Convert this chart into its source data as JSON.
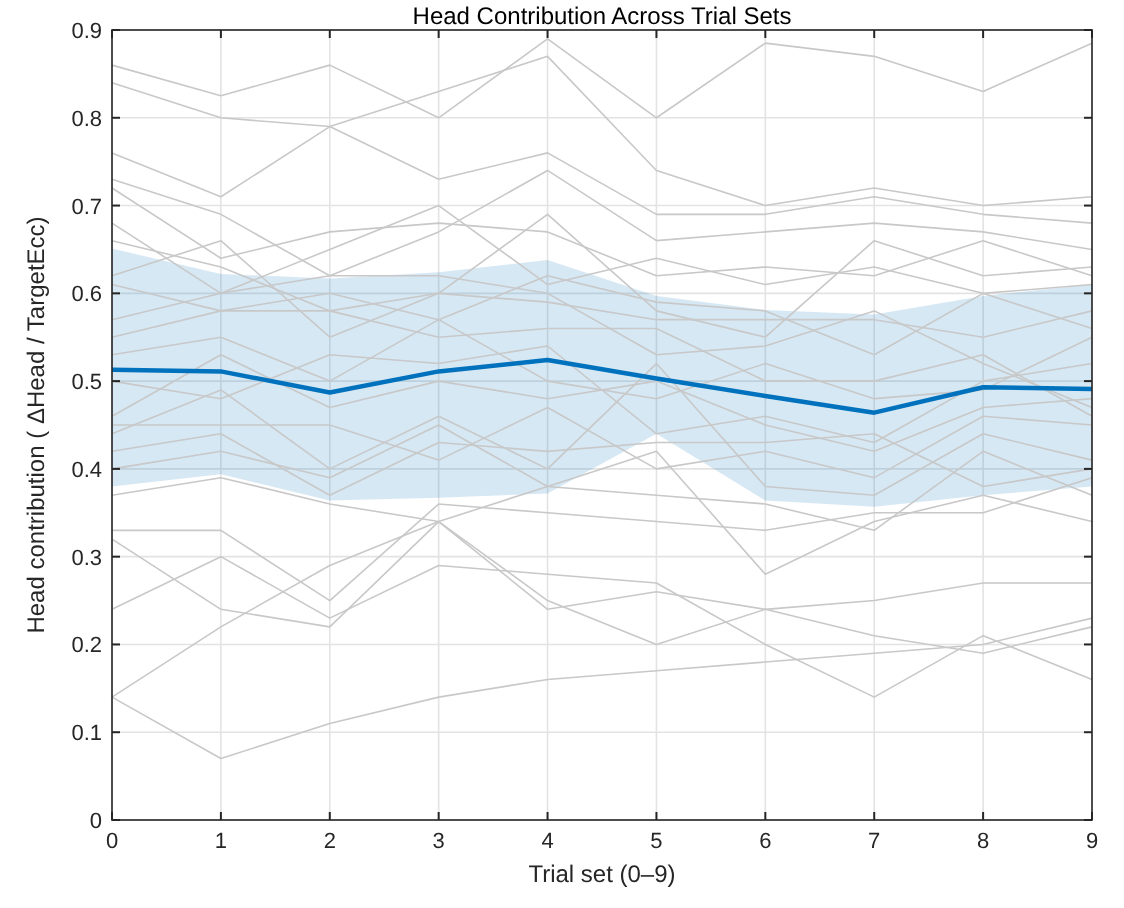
{
  "chart_data": {
    "type": "line",
    "title": "Head Contribution Across Trial Sets",
    "xlabel": "Trial set (0–9)",
    "ylabel": "Head contribution ( ΔHead / TargetEcc)",
    "x": [
      0,
      1,
      2,
      3,
      4,
      5,
      6,
      7,
      8,
      9
    ],
    "xlim": [
      0,
      9
    ],
    "xticks": [
      0,
      1,
      2,
      3,
      4,
      5,
      6,
      7,
      8,
      9
    ],
    "ylim": [
      0,
      0.9
    ],
    "yticks": [
      0,
      0.1,
      0.2,
      0.3,
      0.4,
      0.5,
      0.6,
      0.7,
      0.8,
      0.9
    ],
    "grid": true,
    "marker": "none",
    "line_style": "solid",
    "series": [
      {
        "color": "#c8c8c8",
        "values": [
          0.86,
          0.825,
          0.86,
          0.8,
          0.89,
          0.8,
          0.885,
          0.87,
          0.83,
          0.885
        ]
      },
      {
        "color": "#c8c8c8",
        "values": [
          0.84,
          0.8,
          0.79,
          0.83,
          0.87,
          0.74,
          0.7,
          0.72,
          0.7,
          0.71
        ]
      },
      {
        "color": "#c8c8c8",
        "values": [
          0.76,
          0.71,
          0.79,
          0.73,
          0.76,
          0.69,
          0.69,
          0.71,
          0.69,
          0.68
        ]
      },
      {
        "color": "#c8c8c8",
        "values": [
          0.73,
          0.69,
          0.62,
          0.67,
          0.74,
          0.66,
          0.67,
          0.68,
          0.67,
          0.65
        ]
      },
      {
        "color": "#c8c8c8",
        "values": [
          0.72,
          0.64,
          0.67,
          0.68,
          0.67,
          0.62,
          0.63,
          0.62,
          0.66,
          0.62
        ]
      },
      {
        "color": "#c8c8c8",
        "values": [
          0.68,
          0.6,
          0.65,
          0.7,
          0.61,
          0.64,
          0.61,
          0.63,
          0.6,
          0.61
        ]
      },
      {
        "color": "#c8c8c8",
        "values": [
          0.66,
          0.63,
          0.58,
          0.6,
          0.69,
          0.58,
          0.55,
          0.66,
          0.62,
          0.63
        ]
      },
      {
        "color": "#c8c8c8",
        "values": [
          0.62,
          0.66,
          0.55,
          0.6,
          0.59,
          0.57,
          0.57,
          0.57,
          0.55,
          0.58
        ]
      },
      {
        "color": "#c8c8c8",
        "values": [
          0.61,
          0.58,
          0.6,
          0.57,
          0.62,
          0.59,
          0.58,
          0.53,
          0.6,
          0.56
        ]
      },
      {
        "color": "#c8c8c8",
        "values": [
          0.57,
          0.6,
          0.62,
          0.62,
          0.6,
          0.53,
          0.54,
          0.58,
          0.52,
          0.47
        ]
      },
      {
        "color": "#c8c8c8",
        "values": [
          0.55,
          0.58,
          0.58,
          0.55,
          0.56,
          0.56,
          0.5,
          0.5,
          0.53,
          0.46
        ]
      },
      {
        "color": "#c8c8c8",
        "values": [
          0.53,
          0.55,
          0.5,
          0.57,
          0.5,
          0.48,
          0.52,
          0.48,
          0.49,
          0.55
        ]
      },
      {
        "color": "#c8c8c8",
        "values": [
          0.5,
          0.48,
          0.53,
          0.52,
          0.54,
          0.44,
          0.46,
          0.43,
          0.5,
          0.52
        ]
      },
      {
        "color": "#c8c8c8",
        "values": [
          0.46,
          0.53,
          0.47,
          0.5,
          0.48,
          0.5,
          0.45,
          0.42,
          0.47,
          0.48
        ]
      },
      {
        "color": "#c8c8c8",
        "values": [
          0.45,
          0.45,
          0.45,
          0.41,
          0.47,
          0.4,
          0.42,
          0.39,
          0.46,
          0.45
        ]
      },
      {
        "color": "#c8c8c8",
        "values": [
          0.44,
          0.49,
          0.4,
          0.46,
          0.4,
          0.52,
          0.38,
          0.37,
          0.44,
          0.41
        ]
      },
      {
        "color": "#c8c8c8",
        "values": [
          0.42,
          0.44,
          0.37,
          0.43,
          0.42,
          0.43,
          0.43,
          0.44,
          0.38,
          0.4
        ]
      },
      {
        "color": "#c8c8c8",
        "values": [
          0.4,
          0.42,
          0.39,
          0.45,
          0.38,
          0.37,
          0.36,
          0.33,
          0.42,
          0.37
        ]
      },
      {
        "color": "#c8c8c8",
        "values": [
          0.37,
          0.39,
          0.36,
          0.34,
          0.38,
          0.42,
          0.28,
          0.34,
          0.37,
          0.34
        ]
      },
      {
        "color": "#c8c8c8",
        "values": [
          0.33,
          0.33,
          0.25,
          0.36,
          0.35,
          0.34,
          0.33,
          0.35,
          0.35,
          0.39
        ]
      },
      {
        "color": "#c8c8c8",
        "values": [
          0.32,
          0.24,
          0.22,
          0.34,
          0.24,
          0.26,
          0.24,
          0.21,
          0.19,
          0.22
        ]
      },
      {
        "color": "#c8c8c8",
        "values": [
          0.24,
          0.3,
          0.23,
          0.29,
          0.28,
          0.27,
          0.2,
          0.14,
          0.21,
          0.16
        ]
      },
      {
        "color": "#c8c8c8",
        "values": [
          0.14,
          0.22,
          0.29,
          0.34,
          0.25,
          0.2,
          0.24,
          0.25,
          0.27,
          0.27
        ]
      },
      {
        "color": "#c8c8c8",
        "values": [
          0.14,
          0.07,
          0.11,
          0.14,
          0.16,
          0.17,
          0.18,
          0.19,
          0.2,
          0.23
        ]
      },
      {
        "color": "#0072bd",
        "values": [
          0.513,
          0.511,
          0.487,
          0.511,
          0.524,
          0.503,
          0.483,
          0.464,
          0.493,
          0.491
        ],
        "lower": [
          0.38,
          0.394,
          0.364,
          0.367,
          0.372,
          0.44,
          0.364,
          0.357,
          0.37,
          0.38
        ],
        "upper": [
          0.651,
          0.622,
          0.617,
          0.624,
          0.638,
          0.597,
          0.581,
          0.576,
          0.597,
          0.61
        ]
      }
    ]
  }
}
